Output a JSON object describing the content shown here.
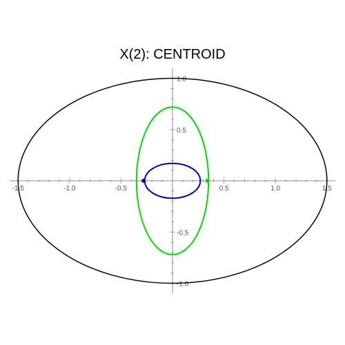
{
  "chart_data": {
    "type": "line",
    "title": "X(2): CENTROID",
    "xlabel": "",
    "ylabel": "",
    "xlim": [
      -1.58,
      1.58
    ],
    "ylim": [
      -1.1,
      1.1
    ],
    "grid": false,
    "x_ticks": [
      {
        "v": -1.5,
        "label": "-1.5"
      },
      {
        "v": -1.0,
        "label": "-1.0"
      },
      {
        "v": -0.5,
        "label": "-0.5"
      },
      {
        "v": 0.5,
        "label": "0.5"
      },
      {
        "v": 1.0,
        "label": "1.0"
      },
      {
        "v": 1.5,
        "label": "1.5"
      }
    ],
    "y_ticks": [
      {
        "v": 1.0,
        "label": "1.0"
      },
      {
        "v": 0.5,
        "label": "0.5"
      },
      {
        "v": -0.5,
        "label": "-0.5"
      },
      {
        "v": -1.0,
        "label": "-1.0"
      }
    ],
    "series": [
      {
        "kind": "ellipse",
        "cx": 0,
        "cy": 0,
        "a": 1.5,
        "b": 1.0,
        "color": "#000000"
      },
      {
        "kind": "ellipse",
        "cx": 0,
        "cy": 0,
        "a": 0.35,
        "b": 0.72,
        "color": "#00e000"
      },
      {
        "kind": "ellipse",
        "cx": 0,
        "cy": 0,
        "a": 0.27,
        "b": 0.17,
        "color": "#0000cc"
      }
    ],
    "points": [
      {
        "x": -0.28,
        "y": 0,
        "color": "#0000cc"
      },
      {
        "x": 0.34,
        "y": 0,
        "color": "#00e000"
      }
    ]
  }
}
